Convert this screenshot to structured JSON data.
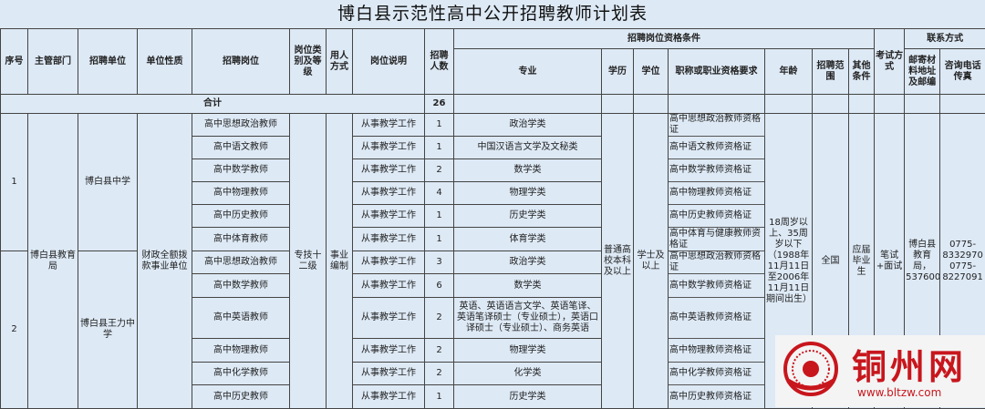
{
  "title": "博白县示范性高中公开招聘教师计划表",
  "headers": {
    "seq": "序号",
    "dept": "主管部门",
    "unit": "招聘单位",
    "nature": "单位性质",
    "post": "招聘岗位",
    "category": "岗位类别及等级",
    "employ": "用人方式",
    "desc": "岗位说明",
    "count": "招聘人数",
    "qual_group": "招聘岗位资格条件",
    "major": "专业",
    "edu": "学历",
    "degree": "学位",
    "cert": "职称或职业资格要求",
    "age": "年龄",
    "scope": "招聘范围",
    "other": "其他条件",
    "exam": "考试方式",
    "contact_group": "联系方式",
    "address": "邮寄材料地址及邮编",
    "phone": "咨询电话传真"
  },
  "total": {
    "label": "合计",
    "count": "26"
  },
  "shared": {
    "dept": "博白县教育局",
    "nature": "财政全额拨款事业单位",
    "category": "专技十二级",
    "employ": "事业编制",
    "edu": "普通高校本科及以上",
    "degree": "学士及以上",
    "age": "18周岁以上、35周岁以下（1988年11月11日至2006年11月11日期间出生）",
    "scope": "全国",
    "other": "应届毕业生",
    "exam": "笔试+面试",
    "address": "博白县教育局，537600",
    "phone": "0775-8332970 0775-8227091"
  },
  "groups": [
    {
      "seq": "1",
      "unit": "博白县中学"
    },
    {
      "seq": "2",
      "unit": "博白县王力中学"
    }
  ],
  "rows": [
    {
      "post": "高中思想政治教师",
      "desc": "从事教学工作",
      "count": "1",
      "major": "政治学类",
      "cert": "高中思想政治教师资格证"
    },
    {
      "post": "高中语文教师",
      "desc": "从事教学工作",
      "count": "1",
      "major": "中国汉语言文学及文秘类",
      "cert": "高中语文教师资格证"
    },
    {
      "post": "高中数学教师",
      "desc": "从事教学工作",
      "count": "2",
      "major": "数学类",
      "cert": "高中数学教师资格证"
    },
    {
      "post": "高中物理教师",
      "desc": "从事教学工作",
      "count": "4",
      "major": "物理学类",
      "cert": "高中物理教师资格证"
    },
    {
      "post": "高中历史教师",
      "desc": "从事教学工作",
      "count": "1",
      "major": "历史学类",
      "cert": "高中历史教师资格证"
    },
    {
      "post": "高中体育教师",
      "desc": "从事教学工作",
      "count": "1",
      "major": "体育学类",
      "cert": "高中体育与健康教师资格证"
    },
    {
      "post": "高中思想政治教师",
      "desc": "从事教学工作",
      "count": "3",
      "major": "政治学类",
      "cert": "高中思想政治教师资格证"
    },
    {
      "post": "高中数学教师",
      "desc": "从事教学工作",
      "count": "6",
      "major": "数学类",
      "cert": "高中数学教师资格证"
    },
    {
      "post": "高中英语教师",
      "desc": "从事教学工作",
      "count": "2",
      "major": "英语、英语语言文学、英语笔译、英语笔译硕士（专业硕士），英语口译硕士（专业硕士）、商务英语",
      "cert": "高中英语教师资格证"
    },
    {
      "post": "高中物理教师",
      "desc": "从事教学工作",
      "count": "2",
      "major": "物理学类",
      "cert": "高中物理教师资格证"
    },
    {
      "post": "高中化学教师",
      "desc": "从事教学工作",
      "count": "2",
      "major": "化学类",
      "cert": "高中化学教师资格证"
    },
    {
      "post": "高中历史教师",
      "desc": "从事教学工作",
      "count": "1",
      "major": "历史学类",
      "cert": "高中历史教师资格证"
    }
  ],
  "watermark": {
    "text": "铜州网",
    "url": "www.bltzw.com",
    "color": "#c8161d"
  }
}
